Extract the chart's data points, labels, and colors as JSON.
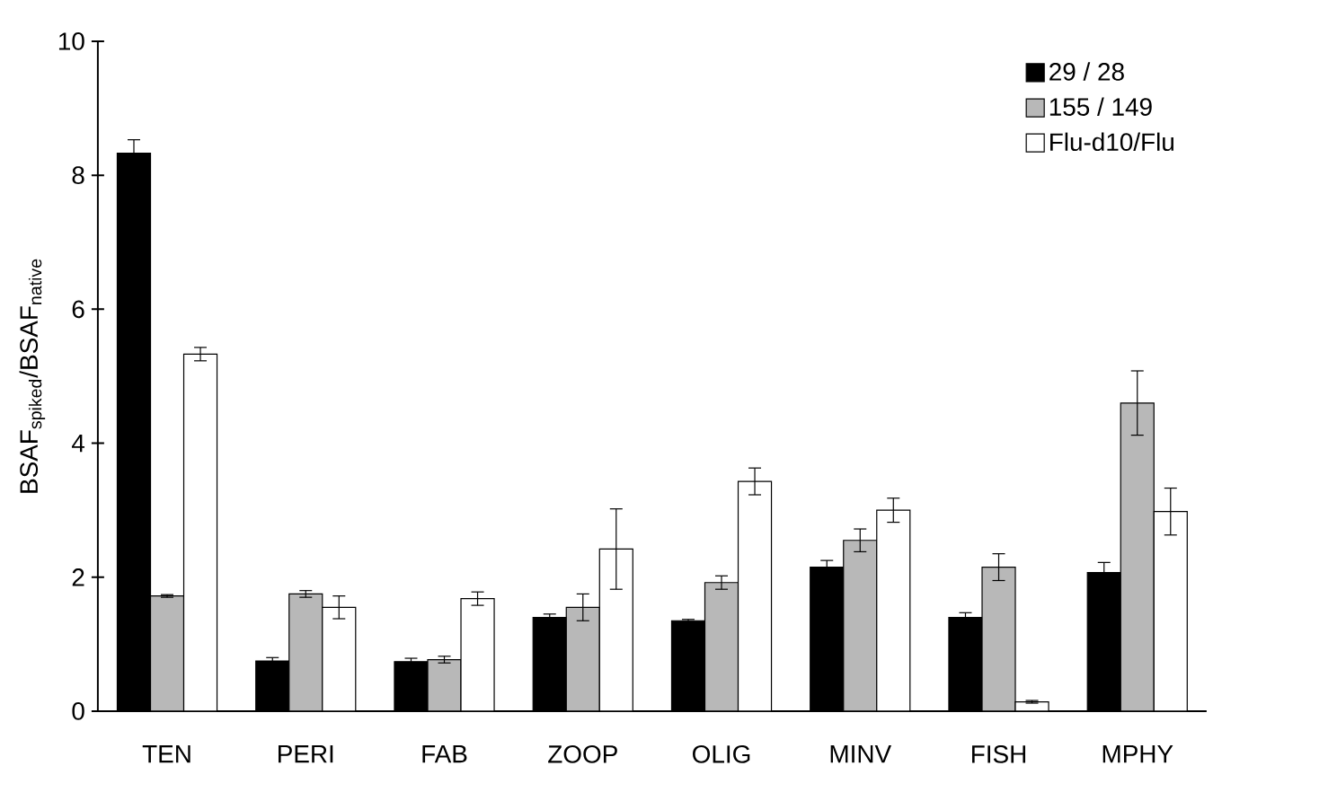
{
  "chart_data": {
    "type": "bar",
    "ylabel": "BSAF$_{spiked}$/BSAF$_{native}$",
    "categories": [
      "TEN",
      "PERI",
      "FAB",
      "ZOOP",
      "OLIG",
      "MINV",
      "FISH",
      "MPHY"
    ],
    "series": [
      {
        "name": "29 / 28",
        "color": "#000000",
        "values": [
          8.33,
          0.75,
          0.74,
          1.4,
          1.35,
          2.15,
          1.4,
          2.07
        ],
        "errors": [
          0.2,
          0.05,
          0.05,
          0.05,
          0.02,
          0.1,
          0.07,
          0.15
        ]
      },
      {
        "name": "155 / 149",
        "color": "#b8b8b8",
        "values": [
          1.72,
          1.75,
          0.77,
          1.55,
          1.92,
          2.55,
          2.15,
          4.6
        ],
        "errors": [
          0.02,
          0.05,
          0.05,
          0.2,
          0.1,
          0.17,
          0.2,
          0.48
        ]
      },
      {
        "name": "Flu-d10/Flu",
        "color": "#ffffff",
        "values": [
          5.33,
          1.55,
          1.68,
          2.42,
          3.43,
          3.0,
          0.14,
          2.98
        ],
        "errors": [
          0.1,
          0.17,
          0.1,
          0.6,
          0.2,
          0.18,
          0.02,
          0.35
        ]
      }
    ],
    "ylim": [
      0,
      10
    ],
    "yticks": [
      0,
      2,
      4,
      6,
      8,
      10
    ],
    "legend": "top right",
    "grid": false
  }
}
